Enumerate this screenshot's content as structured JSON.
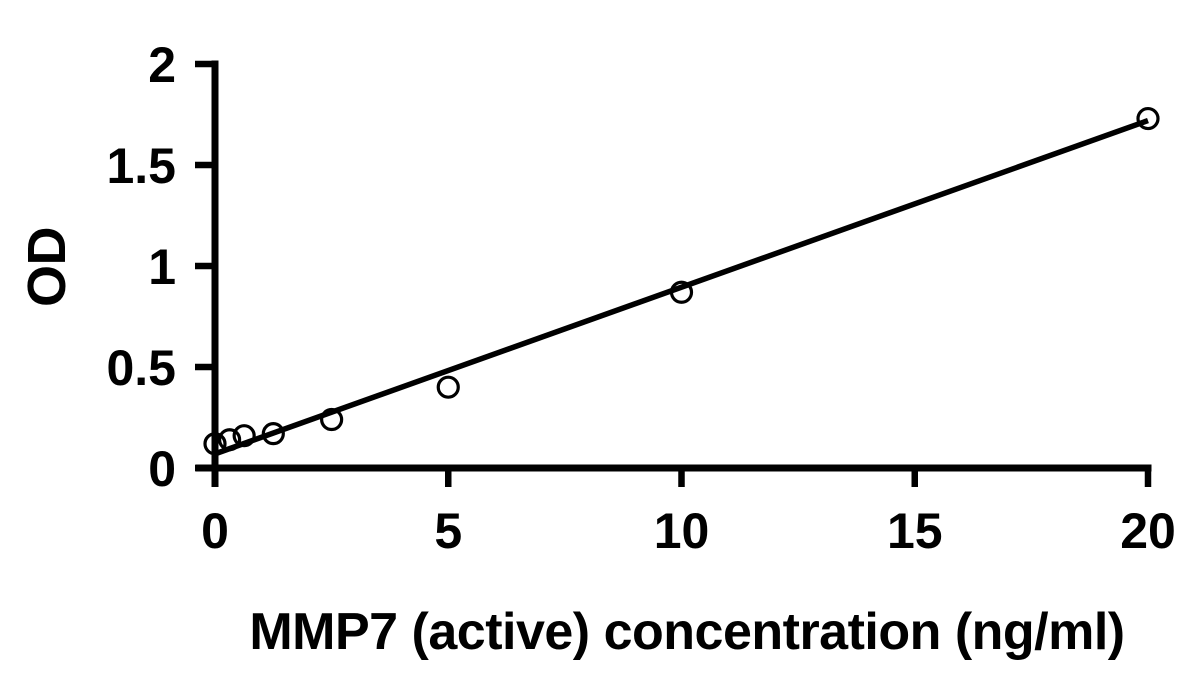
{
  "figure": {
    "background_color": "#ffffff",
    "ink_color": "#000000"
  },
  "chart_data": {
    "type": "scatter",
    "title": "",
    "xlabel": "MMP7 (active) concentration (ng/ml)",
    "ylabel": "OD",
    "xlim": [
      0,
      20
    ],
    "ylim": [
      0,
      2
    ],
    "grid": false,
    "legend": "none",
    "x_ticks": [
      {
        "value": 0,
        "label": "0"
      },
      {
        "value": 5,
        "label": "5"
      },
      {
        "value": 10,
        "label": "10"
      },
      {
        "value": 15,
        "label": "15"
      },
      {
        "value": 20,
        "label": "20"
      }
    ],
    "y_ticks": [
      {
        "value": 0,
        "label": "0"
      },
      {
        "value": 0.5,
        "label": "0.5"
      },
      {
        "value": 1,
        "label": "1"
      },
      {
        "value": 1.5,
        "label": "1.5"
      },
      {
        "value": 2,
        "label": "2"
      }
    ],
    "series": [
      {
        "name": "standard-points",
        "type": "scatter",
        "marker": "open-circle",
        "x": [
          0,
          0.313,
          0.625,
          1.25,
          2.5,
          5,
          10,
          20
        ],
        "y": [
          0.12,
          0.14,
          0.16,
          0.17,
          0.24,
          0.4,
          0.87,
          1.73
        ]
      },
      {
        "name": "linear-fit",
        "type": "line",
        "x": [
          0,
          20
        ],
        "y": [
          0.07,
          1.72
        ]
      }
    ]
  }
}
